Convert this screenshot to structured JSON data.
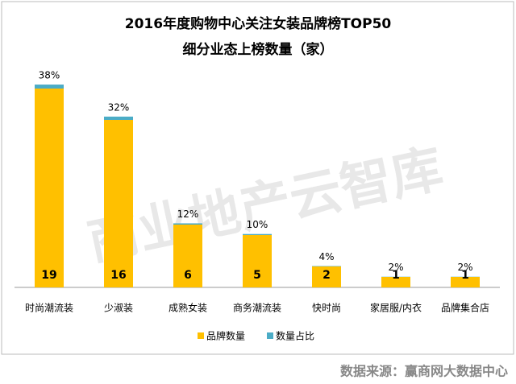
{
  "chart_data": {
    "type": "bar",
    "title": "2016年度购物中心关注女装品牌榜TOP50",
    "subtitle": "细分业态上榜数量（家）",
    "watermark": "商业地产云智库",
    "source": "数据来源：赢商网大数据中心",
    "categories": [
      "时尚潮流装",
      "少淑装",
      "成熟女装",
      "商务潮流装",
      "快时尚",
      "家居服/内衣",
      "品牌集合店"
    ],
    "series": [
      {
        "name": "品牌数量",
        "color": "#FFC000",
        "values": [
          19,
          16,
          6,
          5,
          2,
          1,
          1
        ]
      },
      {
        "name": "数量占比",
        "color": "#4BACC6",
        "axis": "y2",
        "values": [
          38,
          32,
          12,
          10,
          4,
          2,
          2
        ],
        "value_labels": [
          "38%",
          "32%",
          "12%",
          "10%",
          "4%",
          "2%",
          "2%"
        ]
      }
    ],
    "ylim": [
      0,
      20
    ],
    "y2lim": [
      0,
      2000
    ],
    "stacked": true,
    "legend": "bottom"
  }
}
